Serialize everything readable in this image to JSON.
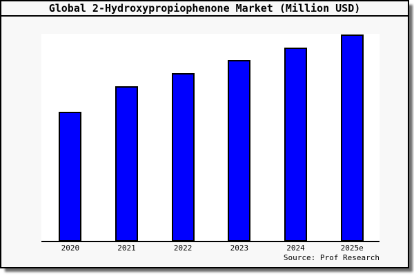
{
  "colors": {
    "figure_background": "#f8f8f8",
    "plot_background": "#ffffff",
    "bar_fill": "#0000ff",
    "bar_border": "#000000",
    "axis_line": "#000000",
    "text": "#000000"
  },
  "chart_data": {
    "type": "bar",
    "title": "Global 2-Hydroxypropiophenone Market (Million USD)",
    "categories": [
      "2020",
      "2021",
      "2022",
      "2023",
      "2024",
      "2025e"
    ],
    "values": [
      62.7,
      75.0,
      81.3,
      87.7,
      93.7,
      100
    ],
    "value_basis": "no y-axis scale shown; values are relative bar heights as % of tallest (2025e) bar",
    "xlabel": "",
    "ylabel": "",
    "ylim": [
      0,
      100
    ],
    "grid": false,
    "legend": false,
    "source": "Source: Prof Research"
  }
}
